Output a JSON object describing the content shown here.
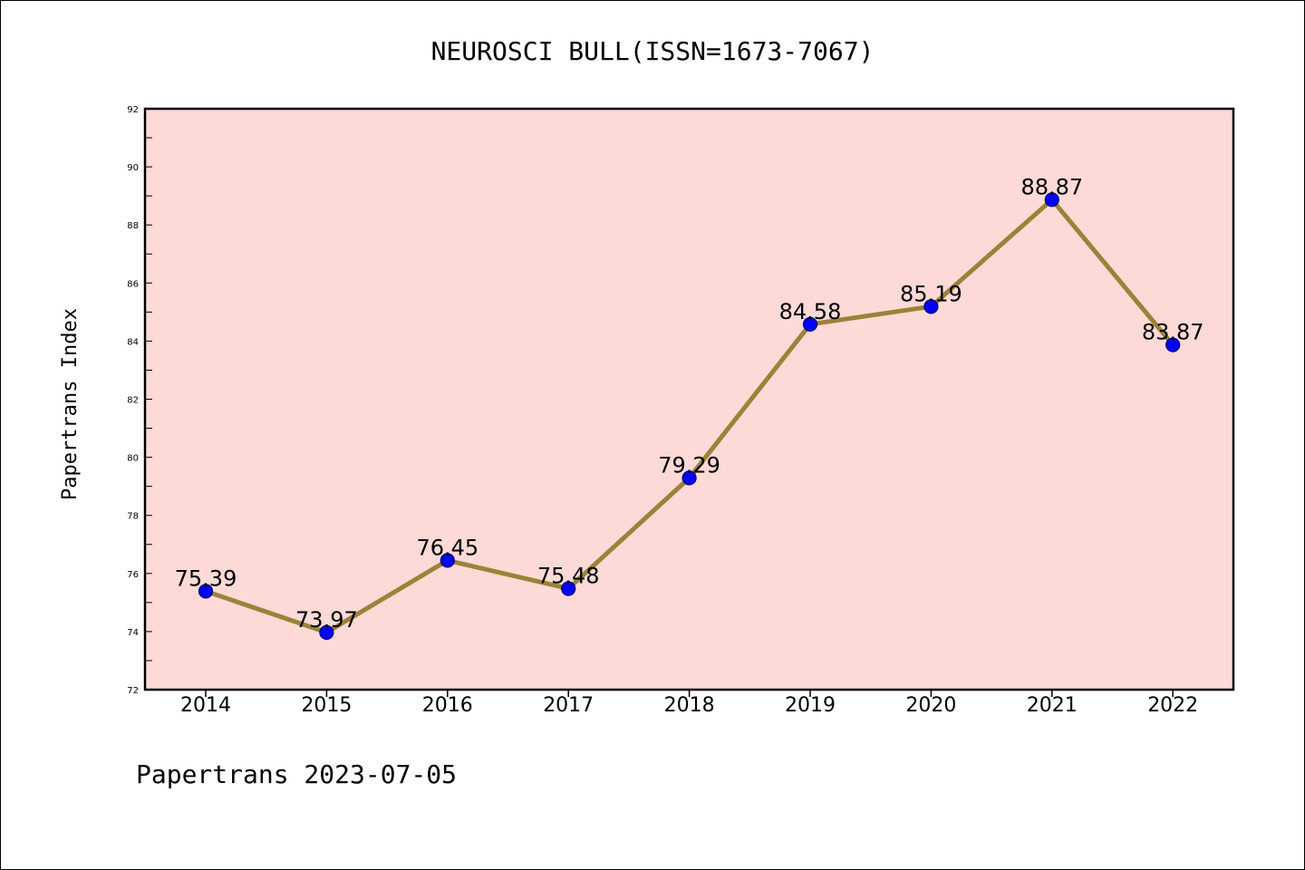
{
  "colors": {
    "plot_background": "#fddad7",
    "line": "#9b8239",
    "marker_fill": "#0000ff",
    "marker_edge": "#00006b"
  },
  "chart_data": {
    "type": "line",
    "title": "NEUROSCI BULL(ISSN=1673-7067)",
    "ylabel": "Papertrans Index",
    "xlabel": "",
    "footer": "Papertrans 2023-07-05",
    "categories": [
      "2014",
      "2015",
      "2016",
      "2017",
      "2018",
      "2019",
      "2020",
      "2021",
      "2022"
    ],
    "values": [
      75.39,
      73.97,
      76.45,
      75.48,
      79.29,
      84.58,
      85.19,
      88.87,
      83.87
    ],
    "data_labels": [
      "75.39",
      "73.97",
      "76.45",
      "75.48",
      "79.29",
      "84.58",
      "85.19",
      "88.87",
      "83.87"
    ],
    "ylim": [
      72,
      92
    ],
    "yticks": [
      "72",
      "74",
      "76",
      "78",
      "80",
      "82",
      "84",
      "86",
      "88",
      "90",
      "92"
    ],
    "grid": false,
    "legend": "none"
  }
}
